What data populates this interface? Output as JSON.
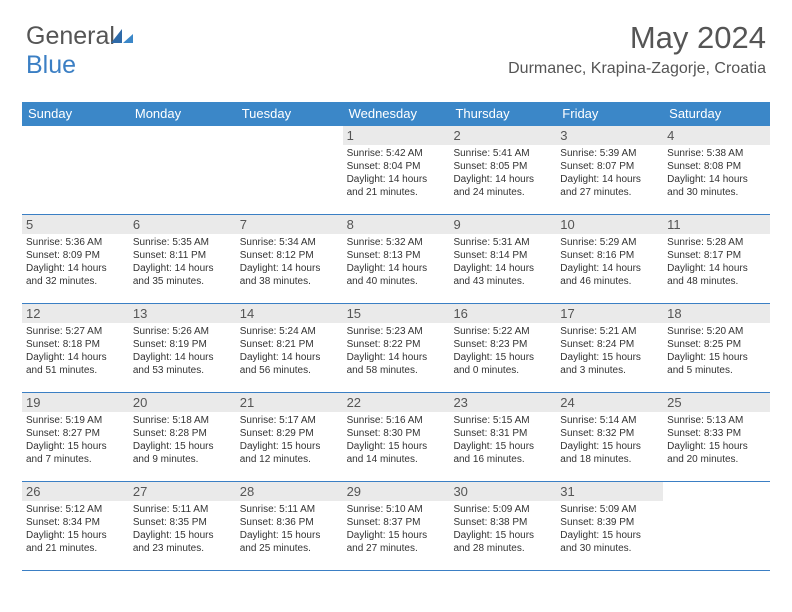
{
  "brand": {
    "part1": "General",
    "part2": "Blue"
  },
  "accent_color": "#3b87c8",
  "header_bg": "#3b87c8",
  "daynum_bg": "#eaeaea",
  "month_title": "May 2024",
  "location": "Durmanec, Krapina-Zagorje, Croatia",
  "day_headers": [
    "Sunday",
    "Monday",
    "Tuesday",
    "Wednesday",
    "Thursday",
    "Friday",
    "Saturday"
  ],
  "weeks": [
    [
      {
        "num": "",
        "sunrise": "",
        "sunset": "",
        "daylight": ""
      },
      {
        "num": "",
        "sunrise": "",
        "sunset": "",
        "daylight": ""
      },
      {
        "num": "",
        "sunrise": "",
        "sunset": "",
        "daylight": ""
      },
      {
        "num": "1",
        "sunrise": "Sunrise: 5:42 AM",
        "sunset": "Sunset: 8:04 PM",
        "daylight": "Daylight: 14 hours and 21 minutes."
      },
      {
        "num": "2",
        "sunrise": "Sunrise: 5:41 AM",
        "sunset": "Sunset: 8:05 PM",
        "daylight": "Daylight: 14 hours and 24 minutes."
      },
      {
        "num": "3",
        "sunrise": "Sunrise: 5:39 AM",
        "sunset": "Sunset: 8:07 PM",
        "daylight": "Daylight: 14 hours and 27 minutes."
      },
      {
        "num": "4",
        "sunrise": "Sunrise: 5:38 AM",
        "sunset": "Sunset: 8:08 PM",
        "daylight": "Daylight: 14 hours and 30 minutes."
      }
    ],
    [
      {
        "num": "5",
        "sunrise": "Sunrise: 5:36 AM",
        "sunset": "Sunset: 8:09 PM",
        "daylight": "Daylight: 14 hours and 32 minutes."
      },
      {
        "num": "6",
        "sunrise": "Sunrise: 5:35 AM",
        "sunset": "Sunset: 8:11 PM",
        "daylight": "Daylight: 14 hours and 35 minutes."
      },
      {
        "num": "7",
        "sunrise": "Sunrise: 5:34 AM",
        "sunset": "Sunset: 8:12 PM",
        "daylight": "Daylight: 14 hours and 38 minutes."
      },
      {
        "num": "8",
        "sunrise": "Sunrise: 5:32 AM",
        "sunset": "Sunset: 8:13 PM",
        "daylight": "Daylight: 14 hours and 40 minutes."
      },
      {
        "num": "9",
        "sunrise": "Sunrise: 5:31 AM",
        "sunset": "Sunset: 8:14 PM",
        "daylight": "Daylight: 14 hours and 43 minutes."
      },
      {
        "num": "10",
        "sunrise": "Sunrise: 5:29 AM",
        "sunset": "Sunset: 8:16 PM",
        "daylight": "Daylight: 14 hours and 46 minutes."
      },
      {
        "num": "11",
        "sunrise": "Sunrise: 5:28 AM",
        "sunset": "Sunset: 8:17 PM",
        "daylight": "Daylight: 14 hours and 48 minutes."
      }
    ],
    [
      {
        "num": "12",
        "sunrise": "Sunrise: 5:27 AM",
        "sunset": "Sunset: 8:18 PM",
        "daylight": "Daylight: 14 hours and 51 minutes."
      },
      {
        "num": "13",
        "sunrise": "Sunrise: 5:26 AM",
        "sunset": "Sunset: 8:19 PM",
        "daylight": "Daylight: 14 hours and 53 minutes."
      },
      {
        "num": "14",
        "sunrise": "Sunrise: 5:24 AM",
        "sunset": "Sunset: 8:21 PM",
        "daylight": "Daylight: 14 hours and 56 minutes."
      },
      {
        "num": "15",
        "sunrise": "Sunrise: 5:23 AM",
        "sunset": "Sunset: 8:22 PM",
        "daylight": "Daylight: 14 hours and 58 minutes."
      },
      {
        "num": "16",
        "sunrise": "Sunrise: 5:22 AM",
        "sunset": "Sunset: 8:23 PM",
        "daylight": "Daylight: 15 hours and 0 minutes."
      },
      {
        "num": "17",
        "sunrise": "Sunrise: 5:21 AM",
        "sunset": "Sunset: 8:24 PM",
        "daylight": "Daylight: 15 hours and 3 minutes."
      },
      {
        "num": "18",
        "sunrise": "Sunrise: 5:20 AM",
        "sunset": "Sunset: 8:25 PM",
        "daylight": "Daylight: 15 hours and 5 minutes."
      }
    ],
    [
      {
        "num": "19",
        "sunrise": "Sunrise: 5:19 AM",
        "sunset": "Sunset: 8:27 PM",
        "daylight": "Daylight: 15 hours and 7 minutes."
      },
      {
        "num": "20",
        "sunrise": "Sunrise: 5:18 AM",
        "sunset": "Sunset: 8:28 PM",
        "daylight": "Daylight: 15 hours and 9 minutes."
      },
      {
        "num": "21",
        "sunrise": "Sunrise: 5:17 AM",
        "sunset": "Sunset: 8:29 PM",
        "daylight": "Daylight: 15 hours and 12 minutes."
      },
      {
        "num": "22",
        "sunrise": "Sunrise: 5:16 AM",
        "sunset": "Sunset: 8:30 PM",
        "daylight": "Daylight: 15 hours and 14 minutes."
      },
      {
        "num": "23",
        "sunrise": "Sunrise: 5:15 AM",
        "sunset": "Sunset: 8:31 PM",
        "daylight": "Daylight: 15 hours and 16 minutes."
      },
      {
        "num": "24",
        "sunrise": "Sunrise: 5:14 AM",
        "sunset": "Sunset: 8:32 PM",
        "daylight": "Daylight: 15 hours and 18 minutes."
      },
      {
        "num": "25",
        "sunrise": "Sunrise: 5:13 AM",
        "sunset": "Sunset: 8:33 PM",
        "daylight": "Daylight: 15 hours and 20 minutes."
      }
    ],
    [
      {
        "num": "26",
        "sunrise": "Sunrise: 5:12 AM",
        "sunset": "Sunset: 8:34 PM",
        "daylight": "Daylight: 15 hours and 21 minutes."
      },
      {
        "num": "27",
        "sunrise": "Sunrise: 5:11 AM",
        "sunset": "Sunset: 8:35 PM",
        "daylight": "Daylight: 15 hours and 23 minutes."
      },
      {
        "num": "28",
        "sunrise": "Sunrise: 5:11 AM",
        "sunset": "Sunset: 8:36 PM",
        "daylight": "Daylight: 15 hours and 25 minutes."
      },
      {
        "num": "29",
        "sunrise": "Sunrise: 5:10 AM",
        "sunset": "Sunset: 8:37 PM",
        "daylight": "Daylight: 15 hours and 27 minutes."
      },
      {
        "num": "30",
        "sunrise": "Sunrise: 5:09 AM",
        "sunset": "Sunset: 8:38 PM",
        "daylight": "Daylight: 15 hours and 28 minutes."
      },
      {
        "num": "31",
        "sunrise": "Sunrise: 5:09 AM",
        "sunset": "Sunset: 8:39 PM",
        "daylight": "Daylight: 15 hours and 30 minutes."
      },
      {
        "num": "",
        "sunrise": "",
        "sunset": "",
        "daylight": ""
      }
    ]
  ]
}
